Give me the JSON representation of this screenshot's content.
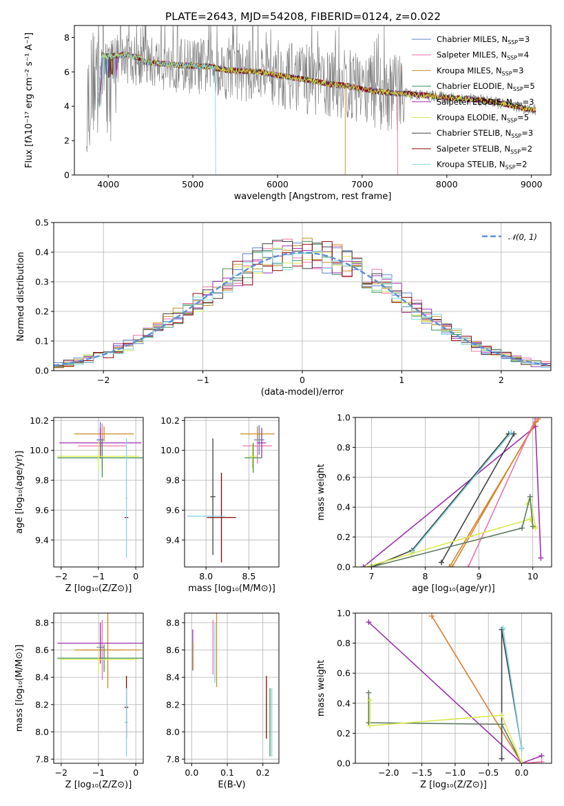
{
  "figure": {
    "title": "PLATE=2643, MJD=54208, FIBERID=0124, z=0.022"
  },
  "colors": {
    "series": [
      "#5b7fd0",
      "#f06faa",
      "#c98a1e",
      "#3e8e54",
      "#9b2fae",
      "#d8e84a",
      "#404040",
      "#8b0000",
      "#7fd6e0"
    ],
    "data_gray": "#808080",
    "gauss": "#5b8fd6",
    "grid": "#b0b0b0",
    "extra_orange": "#e07b2a",
    "extra_slate": "#5e7a60"
  },
  "chart_data": [
    {
      "id": "spectrum",
      "type": "line",
      "xlabel": "wavelength [Angstrom, rest frame]",
      "ylabel": "Flux [fλ10⁻¹⁷ erg cm⁻² s⁻¹ A⁻¹]",
      "xlim": [
        3600,
        9230
      ],
      "ylim": [
        0,
        8.7
      ],
      "xticks": [
        4000,
        5000,
        6000,
        7000,
        8000,
        9000
      ],
      "yticks": [
        0,
        2,
        4,
        6,
        8
      ],
      "grid": false,
      "legend_position": "top-right",
      "legend": [
        "Chabrier MILES, N_SSP=3",
        "Salpeter MILES, N_SSP=4",
        "Kroupa MILES, N_SSP=3",
        "Chabrier ELODIE, N_SSP=5",
        "Salpeter ELODIE, N_SSP=3",
        "Kroupa ELODIE, N_SSP=5",
        "Chabrier STELIB, N_SSP=3",
        "Salpeter STELIB, N_SSP=2",
        "Kroupa STELIB, N_SSP=2"
      ],
      "continuum": {
        "x": [
          3750,
          3900,
          4000,
          4200,
          4400,
          4600,
          4800,
          5000,
          5200,
          5400,
          5600,
          5800,
          6000,
          6200,
          6400,
          6600,
          6800,
          7000,
          7200,
          7400,
          7600,
          7800,
          8000,
          8200,
          8400,
          8600,
          8800,
          9000
        ],
        "y": [
          4.2,
          6.8,
          6.7,
          6.8,
          6.6,
          6.5,
          6.4,
          6.35,
          6.3,
          6.1,
          6.05,
          6.0,
          5.8,
          5.65,
          5.5,
          5.3,
          5.2,
          5.0,
          4.85,
          4.75,
          4.7,
          4.6,
          4.5,
          4.45,
          4.35,
          4.2,
          4.0,
          3.8
        ]
      },
      "model_cutoffs": [
        {
          "model": "Kroupa STELIB",
          "x": 5270
        },
        {
          "model": "Kroupa MILES",
          "x": 6800
        },
        {
          "model": "Salpeter MILES",
          "x": 7420
        }
      ],
      "model_start": 3880
    },
    {
      "id": "residuals",
      "type": "histogram",
      "xlabel": "(data-model)/error",
      "ylabel": "Normed distribution",
      "xlim": [
        -2.5,
        2.5
      ],
      "ylim": [
        0,
        0.5
      ],
      "xticks": [
        -2,
        -1,
        0,
        1,
        2
      ],
      "yticks": [
        0.0,
        0.1,
        0.2,
        0.3,
        0.4,
        0.5
      ],
      "grid": true,
      "bin_width": 0.1,
      "gaussian_label": "𝒩(0, 1)",
      "legend_position": "top-right"
    },
    {
      "id": "age-vs-Z",
      "type": "errorbar",
      "xlabel": "Z [log₁₀(Z/Z⊙)]",
      "ylabel": "age  [log₁₀(age/yr)]",
      "xlim": [
        -2.2,
        0.2
      ],
      "ylim": [
        9.22,
        10.22
      ],
      "xticks": [
        -2,
        -1,
        0
      ],
      "yticks": [
        9.4,
        9.6,
        9.8,
        10.0,
        10.2
      ],
      "grid": true,
      "points": [
        {
          "x": -0.95,
          "y": 10.07,
          "xerr": 0.1,
          "yerr": 0.12,
          "c": 0
        },
        {
          "x": -0.9,
          "y": 10.03,
          "xerr": 0.65,
          "yerr": 0.15,
          "c": 1
        },
        {
          "x": -0.85,
          "y": 10.11,
          "xerr": 0.8,
          "yerr": 0.05,
          "c": 2
        },
        {
          "x": -0.9,
          "y": 9.95,
          "xerr": 1.2,
          "yerr": 0.13,
          "c": 3
        },
        {
          "x": -0.95,
          "y": 10.05,
          "xerr": 1.1,
          "yerr": 0.1,
          "c": 4
        },
        {
          "x": -1.0,
          "y": 9.96,
          "xerr": 1.1,
          "yerr": 0.1,
          "c": 5
        },
        {
          "x": -0.25,
          "y": 9.55,
          "xerr": 0.05,
          "yerr": 0.0,
          "c": 7
        },
        {
          "x": -0.25,
          "y": 9.68,
          "xerr": 0.02,
          "yerr": 0.4,
          "c": 8
        }
      ]
    },
    {
      "id": "age-vs-mass",
      "type": "errorbar",
      "xlabel": "mass [log₁₀(M/M⊙)]",
      "ylabel": "",
      "xlim": [
        7.75,
        8.85
      ],
      "ylim": [
        9.22,
        10.22
      ],
      "xticks": [
        8.0,
        8.5
      ],
      "yticks": [
        9.4,
        9.6,
        9.8,
        10.0,
        10.2
      ],
      "grid": true,
      "points": [
        {
          "x": 8.62,
          "y": 10.07,
          "xerr": 0.06,
          "yerr": 0.1,
          "c": 0
        },
        {
          "x": 8.6,
          "y": 10.03,
          "xerr": 0.17,
          "yerr": 0.12,
          "c": 1
        },
        {
          "x": 8.6,
          "y": 10.11,
          "xerr": 0.2,
          "yerr": 0.05,
          "c": 2
        },
        {
          "x": 8.55,
          "y": 9.95,
          "xerr": 0.1,
          "yerr": 0.1,
          "c": 3
        },
        {
          "x": 8.65,
          "y": 10.05,
          "xerr": 0.05,
          "yerr": 0.1,
          "c": 4
        },
        {
          "x": 8.54,
          "y": 9.96,
          "xerr": 0.05,
          "yerr": 0.08,
          "c": 5
        },
        {
          "x": 8.08,
          "y": 9.69,
          "xerr": 0.03,
          "yerr": 0.39,
          "c": 6
        },
        {
          "x": 8.18,
          "y": 9.55,
          "xerr": 0.17,
          "yerr": 0.3,
          "c": 7
        },
        {
          "x": 8.0,
          "y": 9.56,
          "xerr": 0.22,
          "yerr": 0.0,
          "c": 8
        }
      ]
    },
    {
      "id": "weight-vs-age",
      "type": "line",
      "xlabel": "age  [log₁₀(age/yr)]",
      "ylabel": "mass weight",
      "xlim": [
        6.7,
        10.35
      ],
      "ylim": [
        0,
        1.0
      ],
      "xticks": [
        7,
        8,
        9,
        10
      ],
      "yticks": [
        0.0,
        0.2,
        0.4,
        0.6,
        0.8,
        1.0
      ],
      "grid": true,
      "series": [
        {
          "c": 4,
          "x": [
            6.85,
            10.05,
            10.15
          ],
          "y": [
            0.0,
            0.94,
            0.06
          ]
        },
        {
          "c": 6,
          "x": [
            7.0,
            7.75,
            9.55
          ],
          "y": [
            0.0,
            0.11,
            0.89
          ]
        },
        {
          "c": 8,
          "x": [
            7.75,
            9.6
          ],
          "y": [
            0.1,
            0.9
          ]
        },
        {
          "c": 6,
          "x": [
            8.3,
            9.65
          ],
          "y": [
            0.03,
            0.89
          ]
        },
        {
          "c": "extra_orange",
          "x": [
            8.45,
            10.1
          ],
          "y": [
            0.0,
            0.99
          ]
        },
        {
          "c": 2,
          "x": [
            8.5,
            10.05
          ],
          "y": [
            0.0,
            0.97
          ]
        },
        {
          "c": 1,
          "x": [
            8.8,
            10.05
          ],
          "y": [
            0.0,
            0.99
          ]
        },
        {
          "c": 5,
          "x": [
            6.9,
            7.75,
            9.95,
            10.05
          ],
          "y": [
            0.0,
            0.09,
            0.32,
            0.26
          ]
        },
        {
          "c": 5,
          "x": [
            9.9,
            9.95,
            10.05
          ],
          "y": [
            0.42,
            0.45,
            0.27
          ]
        },
        {
          "c": "extra_slate",
          "x": [
            7.0,
            9.8,
            9.95,
            10.0
          ],
          "y": [
            0.0,
            0.26,
            0.47,
            0.27
          ]
        }
      ]
    },
    {
      "id": "mass-vs-Z",
      "type": "errorbar",
      "xlabel": "Z [log₁₀(Z/Z⊙)]",
      "ylabel": "mass [log₁₀(M/M⊙)]",
      "xlim": [
        -2.2,
        0.2
      ],
      "ylim": [
        7.77,
        8.87
      ],
      "xticks": [
        -2,
        -1,
        0
      ],
      "yticks": [
        7.8,
        8.0,
        8.2,
        8.4,
        8.6,
        8.8
      ],
      "grid": true,
      "points": [
        {
          "x": -0.95,
          "y": 8.62,
          "xerr": 0.1,
          "yerr": 0.08,
          "c": 0
        },
        {
          "x": -0.9,
          "y": 8.6,
          "xerr": 0.55,
          "yerr": 0.22,
          "c": 1
        },
        {
          "x": -0.75,
          "y": 8.6,
          "xerr": 0.9,
          "yerr": 0.28,
          "c": 2
        },
        {
          "x": -0.85,
          "y": 8.54,
          "xerr": 1.25,
          "yerr": 0.1,
          "c": 3
        },
        {
          "x": -0.95,
          "y": 8.65,
          "xerr": 1.15,
          "yerr": 0.15,
          "c": 4
        },
        {
          "x": -1.0,
          "y": 8.53,
          "xerr": 1.05,
          "yerr": 0.1,
          "c": 5
        },
        {
          "x": -0.25,
          "y": 8.18,
          "xerr": 0.05,
          "yerr": 0.23,
          "c": 7
        },
        {
          "x": -0.25,
          "y": 8.07,
          "xerr": 0.05,
          "yerr": 0.25,
          "c": 8
        }
      ]
    },
    {
      "id": "mass-vs-EBV",
      "type": "errorbar",
      "xlabel": "E(B-V)",
      "ylabel": "",
      "xlim": [
        -0.02,
        0.245
      ],
      "ylim": [
        7.77,
        8.87
      ],
      "xticks": [
        0.0,
        0.1,
        0.2
      ],
      "yticks": [
        7.8,
        8.0,
        8.2,
        8.4,
        8.6,
        8.8
      ],
      "grid": true,
      "points": [
        {
          "x": 0.003,
          "y": 8.6,
          "xerr": 0.0,
          "yerr": 0.15,
          "c": 4
        },
        {
          "x": 0.005,
          "y": 8.55,
          "xerr": 0.0,
          "yerr": 0.1,
          "c": 5
        },
        {
          "x": 0.06,
          "y": 8.62,
          "xerr": 0.0,
          "yerr": 0.2,
          "c": 1
        },
        {
          "x": 0.065,
          "y": 8.58,
          "xerr": 0.0,
          "yerr": 0.22,
          "c": 8
        },
        {
          "x": 0.07,
          "y": 8.6,
          "xerr": 0.0,
          "yerr": 0.27,
          "c": 2
        },
        {
          "x": 0.21,
          "y": 8.18,
          "xerr": 0.0,
          "yerr": 0.23,
          "c": 7
        },
        {
          "x": 0.22,
          "y": 8.07,
          "xerr": 0.0,
          "yerr": 0.25,
          "c": 3
        },
        {
          "x": 0.225,
          "y": 8.07,
          "xerr": 0.0,
          "yerr": 0.25,
          "c": 8
        }
      ]
    },
    {
      "id": "weight-vs-Z",
      "type": "line",
      "xlabel": "Z [log₁₀(Z/Z⊙)]",
      "ylabel": "mass weight",
      "xlim": [
        -2.5,
        0.45
      ],
      "ylim": [
        0,
        1.0
      ],
      "xticks": [
        -2.0,
        -1.5,
        -1.0,
        -0.5,
        0.0
      ],
      "yticks": [
        0.0,
        0.2,
        0.4,
        0.6,
        0.8,
        1.0
      ],
      "grid": true,
      "series": [
        {
          "c": 4,
          "x": [
            -2.3,
            0.0,
            0.3
          ],
          "y": [
            0.94,
            0.0,
            0.05
          ]
        },
        {
          "c": "extra_orange",
          "x": [
            -1.35,
            0.0
          ],
          "y": [
            0.98,
            0.0
          ]
        },
        {
          "c": 6,
          "x": [
            -0.3,
            -0.3,
            0.0
          ],
          "y": [
            0.03,
            0.89,
            0.1
          ]
        },
        {
          "c": 8,
          "x": [
            -0.28,
            0.0
          ],
          "y": [
            0.9,
            0.1
          ]
        },
        {
          "c": 1,
          "x": [
            0.0,
            0.3
          ],
          "y": [
            0.0,
            0.01
          ]
        },
        {
          "c": "extra_slate",
          "x": [
            -2.3,
            -2.3,
            -0.3,
            0.0
          ],
          "y": [
            0.47,
            0.27,
            0.26,
            0.0
          ]
        },
        {
          "c": 5,
          "x": [
            -2.28,
            -2.28,
            -0.3,
            0.0
          ],
          "y": [
            0.42,
            0.25,
            0.32,
            0.0
          ]
        }
      ]
    }
  ]
}
